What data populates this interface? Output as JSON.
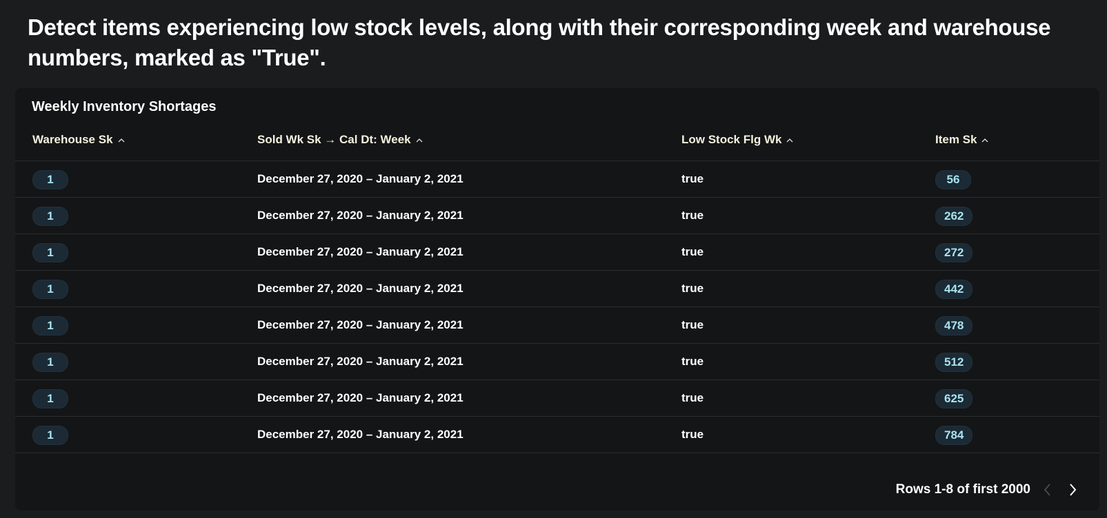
{
  "header": {
    "title": "Detect items experiencing low stock levels, along with their corresponding week and warehouse numbers, marked as \"True\"."
  },
  "card": {
    "title": "Weekly Inventory Shortages"
  },
  "table": {
    "columns": [
      {
        "label": "Warehouse Sk",
        "icon": "chevron-up-icon"
      },
      {
        "label": "Sold Wk Sk → Cal Dt: Week",
        "icon": "chevron-up-icon"
      },
      {
        "label": "Low Stock Flg Wk",
        "icon": "chevron-up-icon"
      },
      {
        "label": "Item Sk",
        "icon": "chevron-up-icon"
      }
    ],
    "rows": [
      {
        "warehouse": "1",
        "week": "December 27, 2020 – January 2, 2021",
        "low_stock": "true",
        "item": "56"
      },
      {
        "warehouse": "1",
        "week": "December 27, 2020 – January 2, 2021",
        "low_stock": "true",
        "item": "262"
      },
      {
        "warehouse": "1",
        "week": "December 27, 2020 – January 2, 2021",
        "low_stock": "true",
        "item": "272"
      },
      {
        "warehouse": "1",
        "week": "December 27, 2020 – January 2, 2021",
        "low_stock": "true",
        "item": "442"
      },
      {
        "warehouse": "1",
        "week": "December 27, 2020 – January 2, 2021",
        "low_stock": "true",
        "item": "478"
      },
      {
        "warehouse": "1",
        "week": "December 27, 2020 – January 2, 2021",
        "low_stock": "true",
        "item": "512"
      },
      {
        "warehouse": "1",
        "week": "December 27, 2020 – January 2, 2021",
        "low_stock": "true",
        "item": "625"
      },
      {
        "warehouse": "1",
        "week": "December 27, 2020 – January 2, 2021",
        "low_stock": "true",
        "item": "784"
      }
    ]
  },
  "pagination": {
    "label": "Rows 1-8 of first 2000",
    "prev_icon": "chevron-left-icon",
    "next_icon": "chevron-right-icon"
  },
  "colors": {
    "background": "#1b1c1d",
    "card": "#141516",
    "pill_bg": "#1b2a35",
    "pill_text": "#a8e3f0",
    "header_text": "#f4f1de"
  }
}
